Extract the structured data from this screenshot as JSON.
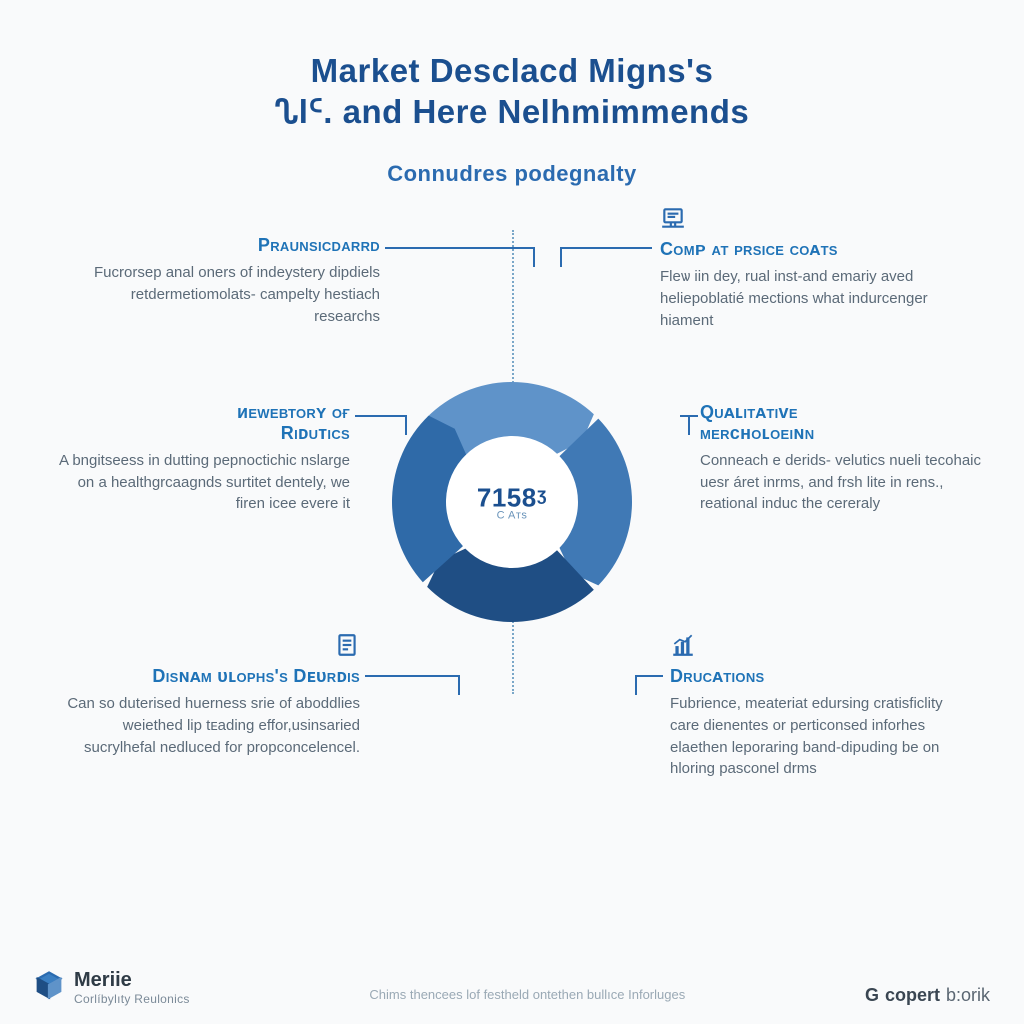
{
  "colors": {
    "background": "#f9fafb",
    "title": "#1b4f8f",
    "subtitle": "#2b6bb0",
    "heading": "#1f73b7",
    "body_text": "#5b6a78",
    "divider": "#7aa7c8",
    "connector": "#2b6bb0",
    "footer_mid": "#9aa9b5"
  },
  "typography": {
    "title_fontsize": 33,
    "subtitle_fontsize": 22,
    "heading_fontsize": 18,
    "body_fontsize": 15,
    "donut_center_fontsize": 26
  },
  "title": {
    "line1": "Market Desclacd Migns's",
    "line2": "ᔐlᑦ. and Here Nelhmimmends"
  },
  "subtitle": "Connudres podegnalty",
  "donut": {
    "type": "donut",
    "center_value": "7158ᶾ",
    "center_sub": "C Aᴛs",
    "outer_radius": 120,
    "inner_radius": 66,
    "gap_deg": 3,
    "background_color": "#ffffff",
    "segments": [
      {
        "start_deg": -45,
        "sweep_deg": 88,
        "color": "#5f93c9"
      },
      {
        "start_deg": 46,
        "sweep_deg": 88,
        "color": "#4079b5"
      },
      {
        "start_deg": 137,
        "sweep_deg": 88,
        "color": "#1f4e84"
      },
      {
        "start_deg": 228,
        "sweep_deg": 88,
        "color": "#2f6aa8"
      }
    ],
    "arrow_notch_deg": 6
  },
  "items": {
    "left": [
      {
        "heading": "Praunsicdarrd",
        "body": "Fucrorsep anal oners of indeystery dipdiels retdermetiomolats- campelty hestiach researchs",
        "icon": null
      },
      {
        "heading": "ᴎеwевтоrʏ оғ\nRıᴅuᴛıcs",
        "body": "A bngitseess in dutting pepnoctichic nslarge on a healthgrcaagnds surtitet dentely, we firen icee evere it",
        "icon": null
      },
      {
        "heading": "Dısɴᴀм ᴜʟорнs's Dᴇᴜrᴅıs",
        "body": "Can so duterised huerness srie of aboddlies weiethed lіp tᴇading effor,usinsaried sucrylhefal nedluced for propconcelencel.",
        "icon": "document"
      }
    ],
    "right": [
      {
        "heading": "Coмᴘ ат рrsıcе coᴀтs",
        "body": "Fleѡ iin dey, rual inst-and emariy aved heliepoblatié mections what indurcenger hiament",
        "icon": "computer"
      },
      {
        "heading": "Quᴀʟıтᴀтıᴠе\nмеrᴄʜoʟoеıɴn",
        "body": "Conneach e derids- velutics nueli tecohaic uesr áret inrms, and frsh lіte in rens., reational induc the cereraly",
        "icon": null
      },
      {
        "heading": "Drucᴀтıons",
        "body": "Fubrience, meateriat edursing cratisficlity care dienentes or perticonsed inforhes elaethen leporaring band-dipuding be on hloring pasconel drms",
        "icon": "barchart"
      }
    ]
  },
  "footer": {
    "brand_name": "Мerііе",
    "brand_tag": "Corlíbylıty Reulonics",
    "mid_text": "Chims thencees lof festheld ontethen bullıсe Inforluges",
    "right_prefix": "G",
    "right_main": "copert",
    "right_suffix": "b:orik"
  }
}
